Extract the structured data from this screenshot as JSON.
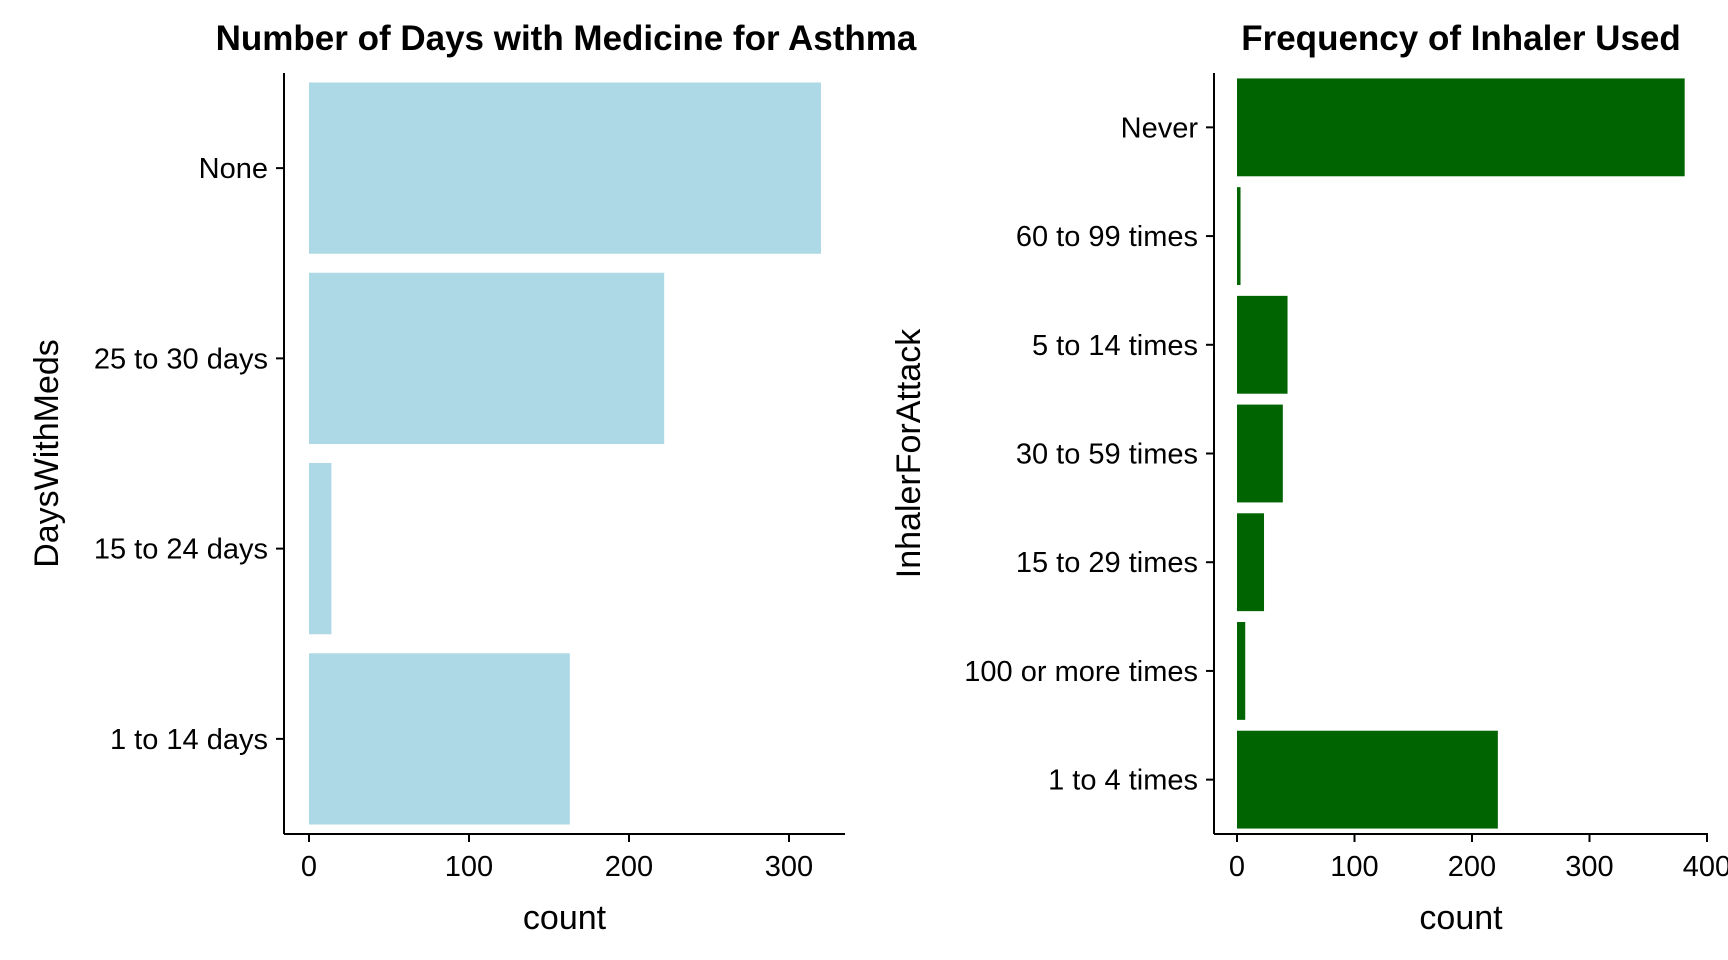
{
  "chart_data": [
    {
      "type": "bar",
      "orientation": "horizontal",
      "title": "Number of Days with Medicine for Asthma",
      "xlabel": "count",
      "ylabel": "DaysWithMeds",
      "categories": [
        "None",
        "25 to 30 days",
        "15 to 24 days",
        "1 to 14 days"
      ],
      "values": [
        320,
        222,
        14,
        163
      ],
      "xlim": [
        0,
        335
      ],
      "xticks": [
        0,
        100,
        200,
        300
      ],
      "bar_color": "#ADD8E6",
      "grid": false,
      "legend": "none"
    },
    {
      "type": "bar",
      "orientation": "horizontal",
      "title": "Frequency of Inhaler Used",
      "xlabel": "count",
      "ylabel": "InhalerForAttack",
      "categories": [
        "Never",
        "60 to 99 times",
        "5 to 14 times",
        "30 to 59 times",
        "15 to 29 times",
        "100 or more times",
        "1 to 4 times"
      ],
      "values": [
        381,
        3,
        43,
        39,
        23,
        7,
        222
      ],
      "xlim": [
        0,
        400
      ],
      "xticks": [
        0,
        100,
        200,
        300,
        400
      ],
      "bar_color": "#006400",
      "grid": false,
      "legend": "none"
    }
  ]
}
